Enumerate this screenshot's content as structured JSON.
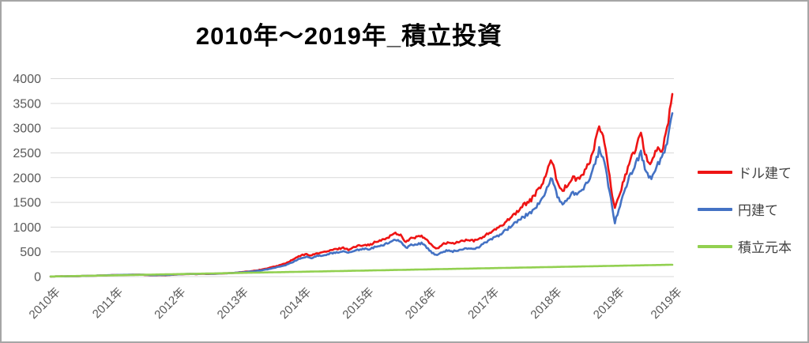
{
  "chart_data": {
    "type": "line",
    "title": "2010年〜2019年_積立投資",
    "xlabel": "",
    "ylabel": "",
    "ylim": [
      0,
      4000
    ],
    "y_ticks": [
      0,
      500,
      1000,
      1500,
      2000,
      2500,
      3000,
      3500,
      4000
    ],
    "grid": "horizontal",
    "legend_position": "right",
    "x_labels": [
      {
        "label": "2010年",
        "m": 0
      },
      {
        "label": "2011年",
        "m": 12
      },
      {
        "label": "2012年",
        "m": 24
      },
      {
        "label": "2013年",
        "m": 36
      },
      {
        "label": "2014年",
        "m": 48
      },
      {
        "label": "2015年",
        "m": 60
      },
      {
        "label": "2016年",
        "m": 72
      },
      {
        "label": "2017年",
        "m": 84
      },
      {
        "label": "2018年",
        "m": 96
      },
      {
        "label": "2019年",
        "m": 108
      },
      {
        "label": "2019年",
        "m": 119
      }
    ],
    "axis_color": "#595959",
    "gridline_color": "#d9d9d9",
    "series": [
      {
        "name": "ドル建て",
        "color": "#ee1414",
        "volatility": 0.028,
        "values": [
          2,
          4,
          6,
          5,
          9,
          8,
          12,
          14,
          18,
          21,
          24,
          27,
          30,
          32,
          34,
          35,
          38,
          39,
          35,
          28,
          26,
          31,
          28,
          35,
          42,
          47,
          51,
          53,
          50,
          57,
          53,
          56,
          60,
          65,
          68,
          75,
          85,
          95,
          105,
          120,
          135,
          155,
          180,
          205,
          235,
          270,
          320,
          380,
          430,
          450,
          430,
          470,
          490,
          510,
          540,
          560,
          585,
          545,
          590,
          625,
          650,
          635,
          690,
          720,
          760,
          820,
          880,
          840,
          700,
          770,
          800,
          815,
          740,
          620,
          570,
          650,
          690,
          665,
          700,
          725,
          740,
          720,
          760,
          820,
          880,
          940,
          1000,
          1100,
          1200,
          1280,
          1390,
          1480,
          1560,
          1700,
          1850,
          2100,
          2360,
          1900,
          1750,
          1850,
          2000,
          1950,
          2100,
          2250,
          2600,
          3050,
          2700,
          2000,
          1350,
          1700,
          2050,
          2350,
          2600,
          2850,
          2400,
          2300,
          2600,
          2500,
          3000,
          3690
        ]
      },
      {
        "name": "円建て",
        "color": "#4472c4",
        "volatility": 0.028,
        "values": [
          2,
          4,
          5,
          6,
          8,
          9,
          13,
          15,
          17,
          22,
          25,
          28,
          31,
          33,
          36,
          37,
          39,
          41,
          37,
          31,
          29,
          33,
          31,
          37,
          44,
          48,
          53,
          55,
          52,
          58,
          55,
          58,
          61,
          66,
          69,
          74,
          82,
          90,
          98,
          110,
          122,
          138,
          158,
          180,
          205,
          235,
          275,
          330,
          375,
          395,
          380,
          415,
          430,
          450,
          475,
          492,
          512,
          478,
          515,
          545,
          565,
          550,
          595,
          620,
          650,
          700,
          745,
          700,
          580,
          635,
          660,
          670,
          590,
          480,
          430,
          500,
          530,
          510,
          535,
          555,
          570,
          560,
          600,
          680,
          730,
          790,
          850,
          930,
          1010,
          1080,
          1170,
          1240,
          1310,
          1430,
          1560,
          1780,
          2000,
          1620,
          1480,
          1560,
          1700,
          1650,
          1780,
          1920,
          2250,
          2550,
          2300,
          1700,
          1100,
          1450,
          1800,
          2050,
          2300,
          2500,
          2100,
          2000,
          2250,
          2400,
          2700,
          3300
        ]
      },
      {
        "name": "積立元本",
        "color": "#92d050",
        "volatility": 0,
        "values": [
          2,
          4,
          6,
          8,
          10,
          12,
          14,
          16,
          18,
          20,
          22,
          24,
          26,
          28,
          30,
          32,
          34,
          36,
          38,
          40,
          42,
          44,
          46,
          48,
          50,
          52,
          54,
          56,
          58,
          60,
          62,
          64,
          66,
          68,
          70,
          72,
          74,
          76,
          78,
          80,
          82,
          84,
          86,
          88,
          90,
          92,
          94,
          96,
          98,
          100,
          102,
          104,
          106,
          108,
          110,
          112,
          114,
          116,
          118,
          120,
          122,
          124,
          126,
          128,
          130,
          132,
          134,
          136,
          138,
          140,
          142,
          144,
          146,
          148,
          150,
          152,
          154,
          156,
          158,
          160,
          162,
          164,
          166,
          168,
          170,
          172,
          174,
          176,
          178,
          180,
          182,
          184,
          186,
          188,
          190,
          192,
          194,
          196,
          198,
          200,
          202,
          204,
          206,
          208,
          210,
          212,
          214,
          216,
          218,
          220,
          222,
          224,
          226,
          228,
          230,
          232,
          234,
          236,
          238,
          240
        ]
      }
    ]
  }
}
